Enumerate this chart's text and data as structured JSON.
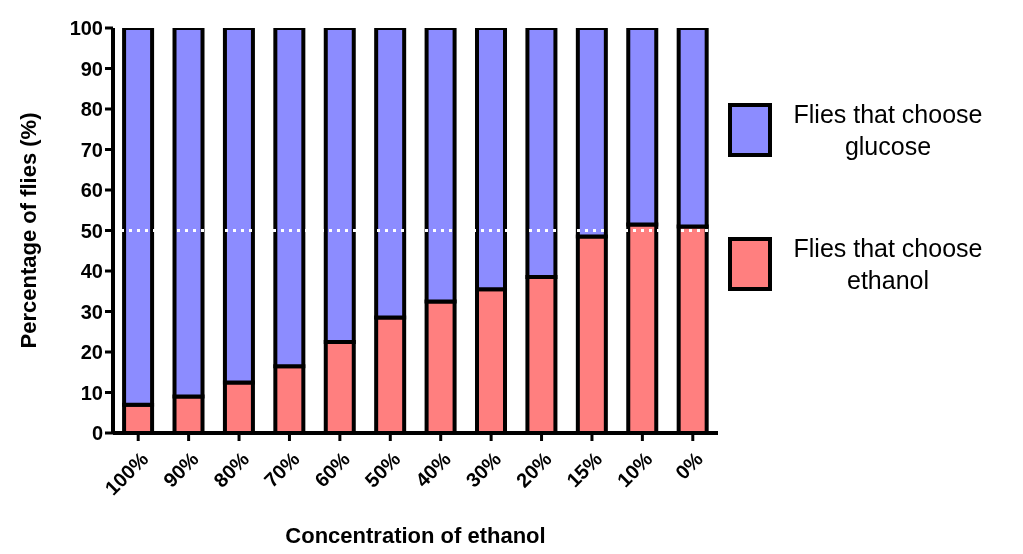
{
  "chart_data": {
    "type": "bar",
    "stacked": true,
    "xlabel": "Concentration of ethanol",
    "ylabel": "Percentage of flies (%)",
    "categories": [
      "100%",
      "90%",
      "80%",
      "70%",
      "60%",
      "50%",
      "40%",
      "30%",
      "20%",
      "15%",
      "10%",
      "0%"
    ],
    "series": [
      {
        "name": "Flies that choose ethanol",
        "color": "#ff7f7f",
        "values": [
          7,
          9,
          12.5,
          16.5,
          22.5,
          28.5,
          32.5,
          35.5,
          38.5,
          48.5,
          51.5,
          51
        ]
      },
      {
        "name": "Flies that choose glucose",
        "color": "#8c8cff",
        "values": [
          93,
          91,
          87.5,
          83.5,
          77.5,
          71.5,
          67.5,
          64.5,
          61.5,
          51.5,
          48.5,
          49
        ]
      }
    ],
    "ylim": [
      0,
      100
    ],
    "yticks": [
      0,
      10,
      20,
      30,
      40,
      50,
      60,
      70,
      80,
      90,
      100
    ],
    "grid": false,
    "legend": "right",
    "ref_lines": [
      {
        "axis": "y",
        "value": 50,
        "color": "#ffffff",
        "line_style": "dotted"
      }
    ]
  }
}
